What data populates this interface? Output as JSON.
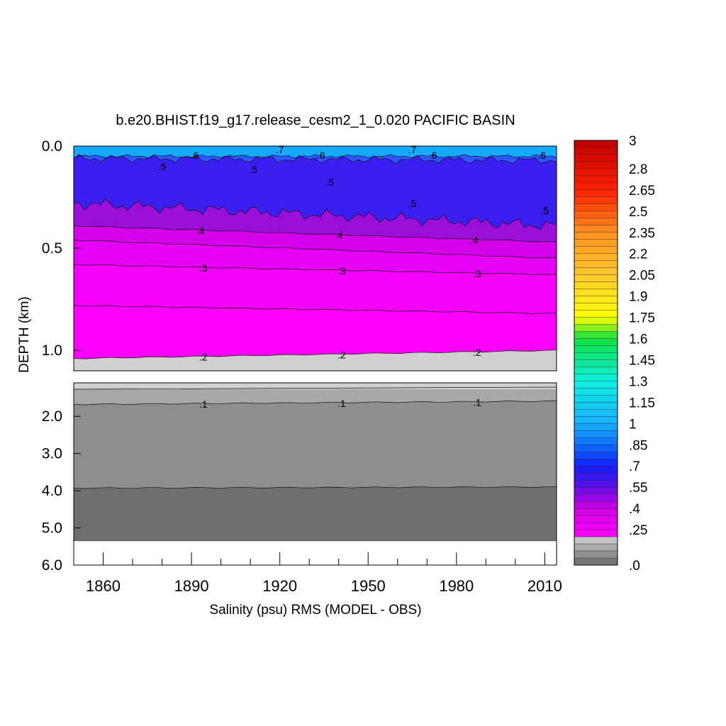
{
  "chart_data": {
    "type": "heatmap",
    "title": "b.e20.BHIST.f19_g17.release_cesm2_1_0.020 PACIFIC BASIN",
    "xlabel": "Salinity (psu) RMS (MODEL - OBS)",
    "ylabel": "DEPTH (km)",
    "xlim": [
      1850,
      2014
    ],
    "x_ticks": [
      1860,
      1890,
      1920,
      1950,
      1980,
      2010
    ],
    "x_tick_labels": [
      "1860",
      "1890",
      "1920",
      "1950",
      "1980",
      "2010"
    ],
    "upper_panel": {
      "ylim": [
        0.0,
        1.1
      ],
      "y_ticks": [
        0.0,
        0.5,
        1.0
      ],
      "y_tick_labels": [
        "0.0",
        "0.5",
        "1.0"
      ]
    },
    "lower_panel": {
      "ylim": [
        1.1,
        6.0
      ],
      "y_ticks": [
        2.0,
        3.0,
        4.0,
        5.0,
        6.0
      ],
      "y_tick_labels": [
        "2.0",
        "3.0",
        "4.0",
        "5.0",
        "6.0"
      ],
      "data_bottom_depth": 5.35
    },
    "contour_lines": [
      {
        "level": 0.7,
        "label": ".7",
        "depth_start": 0.05,
        "depth_end": 0.05,
        "labels": [
          {
            "year": 1920,
            "text": ".7"
          },
          {
            "year": 1965,
            "text": ".7"
          }
        ]
      },
      {
        "level": 0.6,
        "label": ".6",
        "depth_start": 0.06,
        "depth_end": 0.07,
        "labels": [
          {
            "year": 1891,
            "text": ".6"
          },
          {
            "year": 1934,
            "text": ".6"
          },
          {
            "year": 1972,
            "text": ".6"
          },
          {
            "year": 2009,
            "text": ".6"
          }
        ]
      },
      {
        "level": 0.5,
        "label": ".5",
        "depth_start": 0.28,
        "depth_end": 0.39,
        "labels": [
          {
            "year": 1880,
            "text": ".5"
          },
          {
            "year": 1911,
            "text": ".5"
          },
          {
            "year": 1937,
            "text": ".5"
          },
          {
            "year": 1965,
            "text": ".5"
          },
          {
            "year": 2010,
            "text": ".5"
          }
        ]
      },
      {
        "level": 0.4,
        "label": ".4",
        "depth_start": 0.39,
        "depth_end": 0.47,
        "labels": [
          {
            "year": 1893,
            "text": ".4"
          },
          {
            "year": 1940,
            "text": ".4"
          },
          {
            "year": 1986,
            "text": ".4"
          }
        ]
      },
      {
        "level": 0.35,
        "label": "",
        "depth_start": 0.46,
        "depth_end": 0.55,
        "labels": []
      },
      {
        "level": 0.3,
        "label": ".3",
        "depth_start": 0.58,
        "depth_end": 0.63,
        "labels": [
          {
            "year": 1894,
            "text": ".3"
          },
          {
            "year": 1941,
            "text": ".3"
          },
          {
            "year": 1987,
            "text": ".3"
          }
        ]
      },
      {
        "level": 0.25,
        "label": "",
        "depth_start": 0.78,
        "depth_end": 0.82,
        "labels": []
      },
      {
        "level": 0.2,
        "label": ".2",
        "depth_start": 1.04,
        "depth_end": 1.0,
        "labels": [
          {
            "year": 1894,
            "text": ".2"
          },
          {
            "year": 1941,
            "text": ".2"
          },
          {
            "year": 1987,
            "text": ".2"
          }
        ]
      },
      {
        "level": 0.1,
        "label": ".1",
        "depth_start": 1.68,
        "depth_end": 1.59,
        "labels": [
          {
            "year": 1894,
            "text": ".1"
          },
          {
            "year": 1941,
            "text": ".1"
          },
          {
            "year": 1987,
            "text": ".1"
          }
        ]
      },
      {
        "level": 0.05,
        "label": "",
        "depth_start": 3.93,
        "depth_end": 3.9,
        "labels": []
      }
    ],
    "colorbar": {
      "min": 0.0,
      "max": 3.0,
      "labels": [
        "3",
        "2.8",
        "2.65",
        "2.5",
        "2.35",
        "2.2",
        "2.05",
        "1.9",
        "1.75",
        "1.6",
        "1.45",
        "1.3",
        "1.15",
        "1",
        ".85",
        ".7",
        ".55",
        ".4",
        ".25",
        ".0"
      ],
      "label_values": [
        3.0,
        2.8,
        2.65,
        2.5,
        2.35,
        2.2,
        2.05,
        1.9,
        1.75,
        1.6,
        1.45,
        1.3,
        1.15,
        1.0,
        0.85,
        0.7,
        0.55,
        0.4,
        0.25,
        0.0
      ]
    },
    "colors": {
      "magenta": "#ff00ff",
      "purple_blue": "#6a16e6",
      "deep_blue": "#1e32ff",
      "cyan_top": "#16aaff",
      "grey_light": "#d0d0d0",
      "grey_mid": "#8e8e8e",
      "grey_dark": "#6f6f6f"
    }
  }
}
